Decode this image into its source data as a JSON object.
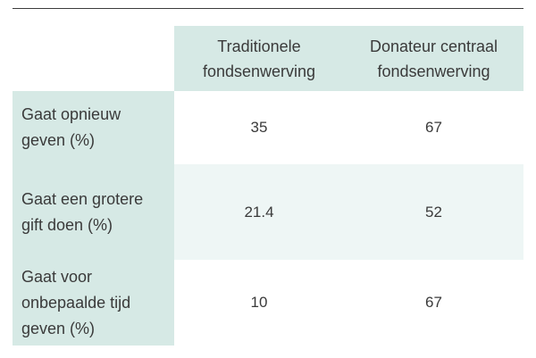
{
  "table": {
    "headers": [
      "Traditionele\nfondsenwerving",
      "Donateur centraal\nfondsenwerving"
    ],
    "rows": [
      {
        "label": "Gaat opnieuw\ngeven (%)",
        "values": [
          "35",
          "67"
        ]
      },
      {
        "label": "Gaat een grotere\ngift doen (%)",
        "values": [
          "21.4",
          "52"
        ]
      },
      {
        "label": "Gaat voor\nonbepaalde tijd\ngeven (%)",
        "values": [
          "10",
          "67"
        ]
      }
    ]
  },
  "colors": {
    "header_bg": "#d6e9e5",
    "alt_row_bg": "#eef6f5",
    "rule": "#3c3c3c",
    "text": "#3a3a3a"
  }
}
